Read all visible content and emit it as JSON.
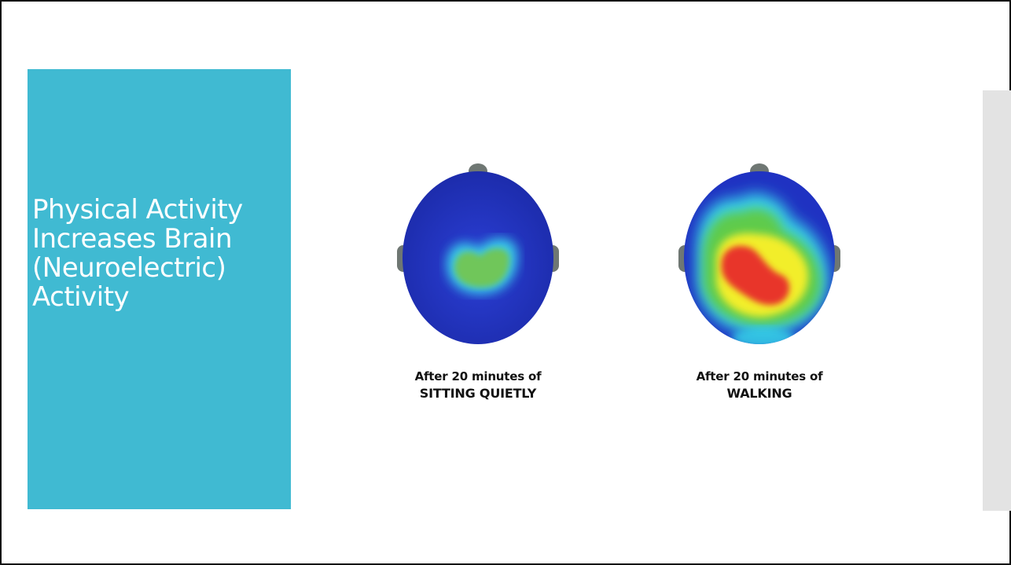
{
  "slide": {
    "title": "Physical Activity Increases Brain (Neuroelectric) Activity",
    "colors": {
      "title_panel": "#40bad2",
      "title_text": "#ffffff",
      "right_strip": "#e3e3e3",
      "caption_text": "#111111"
    }
  },
  "figures": [
    {
      "image": "brain-heatmap-sitting",
      "caption_line1": "After 20 minutes of",
      "caption_line2": "SITTING QUIETLY"
    },
    {
      "image": "brain-heatmap-walking",
      "caption_line1": "After 20 minutes of",
      "caption_line2": "WALKING"
    }
  ]
}
